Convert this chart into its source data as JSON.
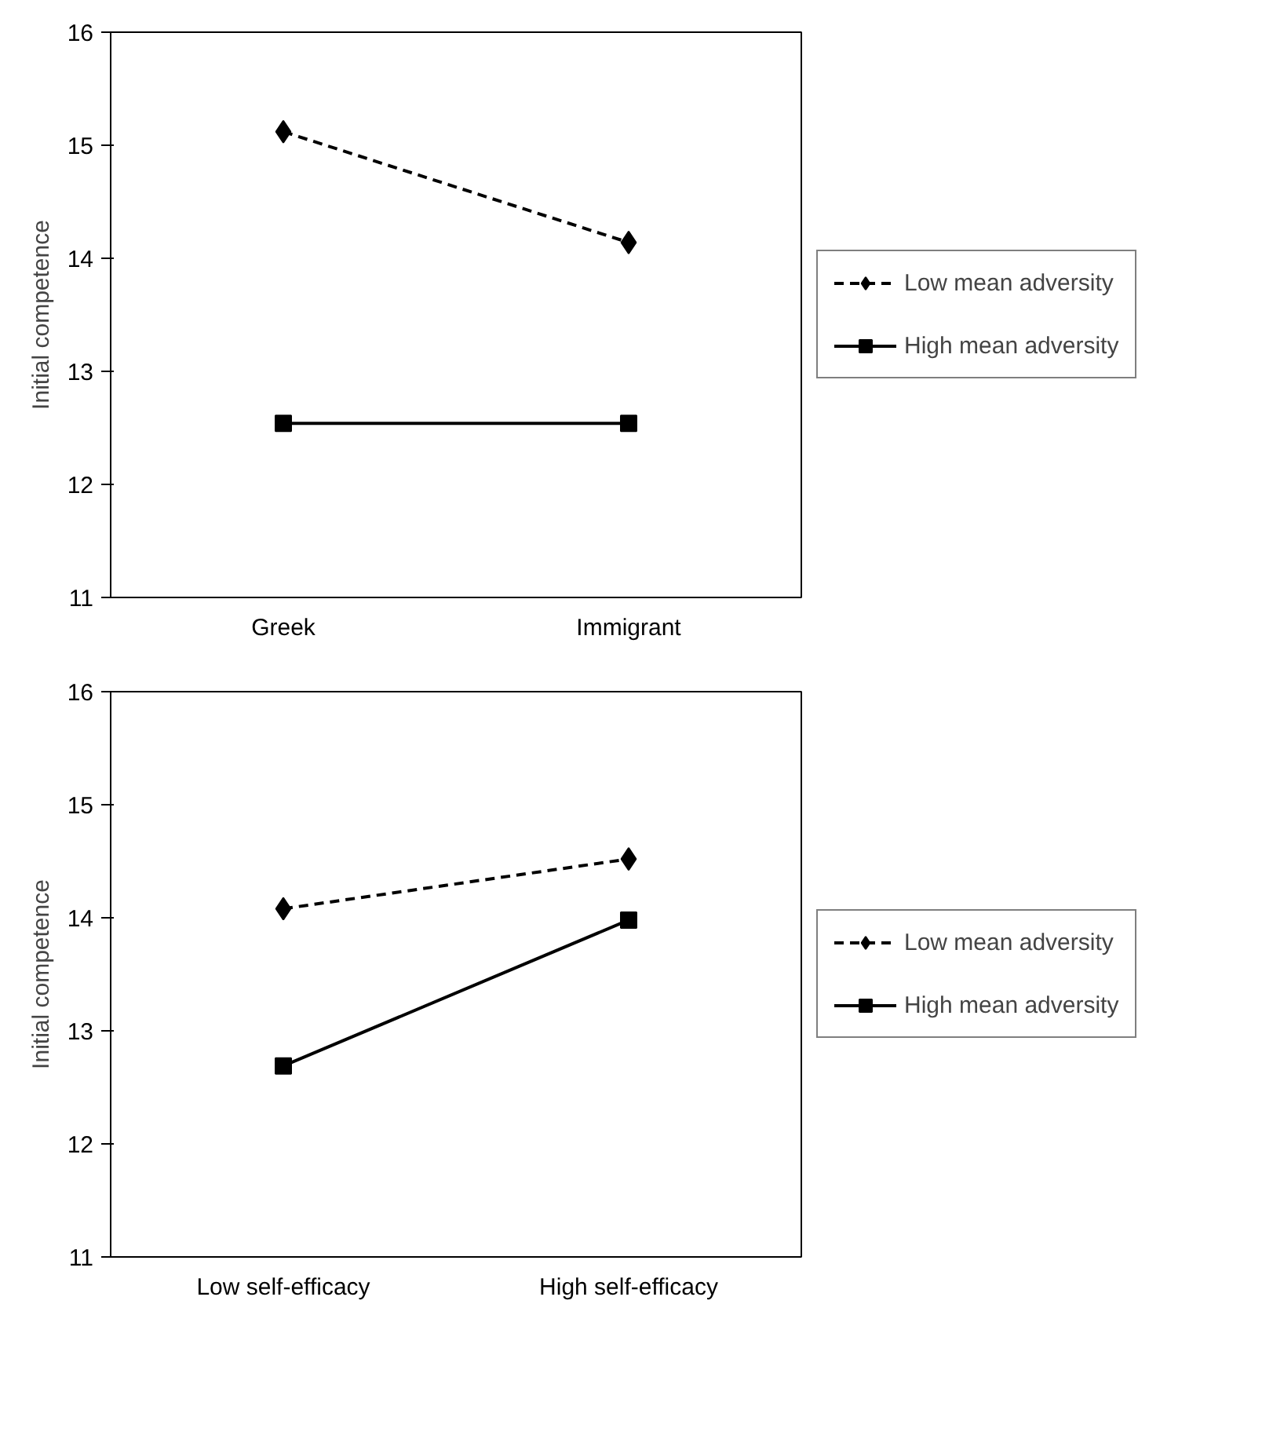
{
  "chart_data": [
    {
      "type": "line",
      "ylabel": "Initial competence",
      "categories": [
        "Greek",
        "Immigrant"
      ],
      "ylim": [
        11,
        16
      ],
      "yticks": [
        11,
        12,
        13,
        14,
        15,
        16
      ],
      "grid": false,
      "legend": "right",
      "series": [
        {
          "name": "Low mean adversity",
          "color": "#000000",
          "values": [
            15.12,
            14.14
          ],
          "marker": "diamond",
          "line_style": "dashed"
        },
        {
          "name": "High mean adversity",
          "color": "#000000",
          "values": [
            12.54,
            12.54
          ],
          "marker": "square",
          "line_style": "solid"
        }
      ]
    },
    {
      "type": "line",
      "ylabel": "Initial competence",
      "categories": [
        "Low self-efficacy",
        "High self-efficacy"
      ],
      "ylim": [
        11,
        16
      ],
      "yticks": [
        11,
        12,
        13,
        14,
        15,
        16
      ],
      "grid": false,
      "legend": "right",
      "series": [
        {
          "name": "Low mean adversity",
          "color": "#000000",
          "values": [
            14.08,
            14.52
          ],
          "marker": "diamond",
          "line_style": "dashed"
        },
        {
          "name": "High mean adversity",
          "color": "#000000",
          "values": [
            12.69,
            13.98
          ],
          "marker": "square",
          "line_style": "solid"
        }
      ]
    }
  ]
}
